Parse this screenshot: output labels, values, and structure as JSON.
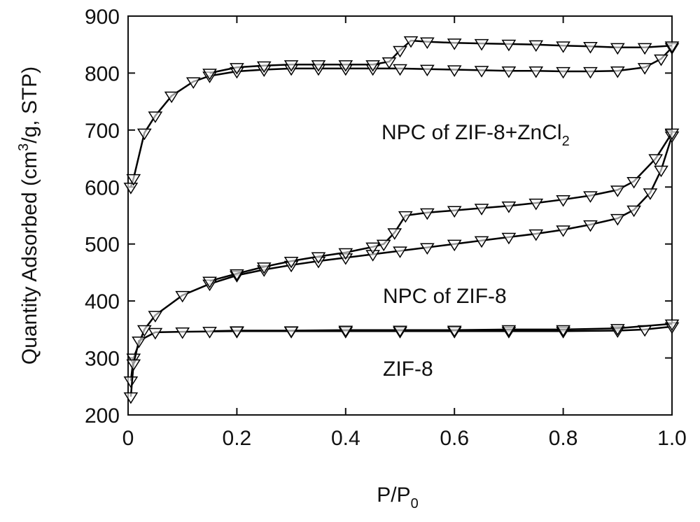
{
  "chart_data": {
    "type": "line",
    "xlabel": [
      "P/P",
      "0"
    ],
    "ylabel": [
      "Quantity Adsorbed (cm",
      "3",
      "/g, STP)"
    ],
    "annotations": [
      {
        "text": [
          "NPC of ZIF-8+ZnCl",
          "2"
        ]
      },
      {
        "text": [
          "NPC of ZIF-8"
        ]
      },
      {
        "text": [
          "ZIF-8"
        ]
      }
    ],
    "xlim": [
      0,
      1
    ],
    "ylim": [
      200,
      900
    ],
    "xticks": [
      0,
      0.2,
      0.4,
      0.6,
      0.8,
      {
        "value": 1,
        "label": "1.0"
      }
    ],
    "yticks": [
      200,
      300,
      400,
      500,
      600,
      700,
      800,
      900
    ],
    "marker": "triangle-down",
    "series": [
      {
        "color": "#000000",
        "x": [
          0.005,
          0.01,
          0.03,
          0.05,
          0.08,
          0.12,
          0.15,
          0.2,
          0.25,
          0.3,
          0.35,
          0.4,
          0.45,
          0.5,
          0.55,
          0.6,
          0.65,
          0.7,
          0.75,
          0.8,
          0.85,
          0.9,
          0.95,
          0.98,
          1.0
        ],
        "values": [
          600,
          615,
          695,
          725,
          760,
          785,
          795,
          803,
          806,
          808,
          808,
          808,
          808,
          808,
          807,
          806,
          805,
          804,
          804,
          803,
          803,
          804,
          810,
          825,
          845
        ]
      },
      {
        "color": "#000000",
        "x": [
          1.0,
          0.95,
          0.9,
          0.85,
          0.8,
          0.75,
          0.7,
          0.65,
          0.6,
          0.55,
          0.52,
          0.5,
          0.48,
          0.45,
          0.4,
          0.35,
          0.3,
          0.25,
          0.2,
          0.15
        ],
        "values": [
          848,
          845,
          845,
          847,
          848,
          850,
          851,
          852,
          853,
          855,
          857,
          840,
          820,
          815,
          815,
          815,
          815,
          813,
          810,
          800
        ]
      },
      {
        "color": "#000000",
        "x": [
          0.005,
          0.01,
          0.03,
          0.05,
          0.1,
          0.15,
          0.2,
          0.25,
          0.3,
          0.35,
          0.4,
          0.45,
          0.5,
          0.55,
          0.6,
          0.65,
          0.7,
          0.75,
          0.8,
          0.85,
          0.9,
          0.93,
          0.96,
          0.98,
          1.0
        ],
        "values": [
          260,
          300,
          350,
          375,
          410,
          430,
          445,
          455,
          463,
          470,
          476,
          482,
          488,
          494,
          500,
          506,
          512,
          518,
          525,
          534,
          545,
          560,
          590,
          630,
          690
        ]
      },
      {
        "color": "#000000",
        "x": [
          1.0,
          0.97,
          0.93,
          0.9,
          0.85,
          0.8,
          0.75,
          0.7,
          0.65,
          0.6,
          0.55,
          0.51,
          0.49,
          0.47,
          0.45,
          0.4,
          0.35,
          0.3,
          0.25,
          0.2,
          0.15
        ],
        "values": [
          695,
          650,
          610,
          595,
          585,
          578,
          572,
          567,
          563,
          559,
          555,
          550,
          520,
          500,
          495,
          485,
          478,
          470,
          460,
          448,
          435
        ]
      },
      {
        "color": "#000000",
        "x": [
          0.005,
          0.01,
          0.02,
          0.05,
          0.1,
          0.2,
          0.3,
          0.4,
          0.5,
          0.6,
          0.7,
          0.8,
          0.9,
          0.95,
          1.0
        ],
        "values": [
          232,
          290,
          330,
          345,
          346,
          347,
          347,
          347,
          347,
          347,
          347,
          347,
          348,
          350,
          355
        ]
      },
      {
        "color": "#000000",
        "x": [
          1.0,
          0.9,
          0.8,
          0.7,
          0.6,
          0.5,
          0.4,
          0.3,
          0.2,
          0.15
        ],
        "values": [
          360,
          352,
          350,
          350,
          349,
          349,
          349,
          348,
          348,
          347
        ]
      }
    ]
  }
}
